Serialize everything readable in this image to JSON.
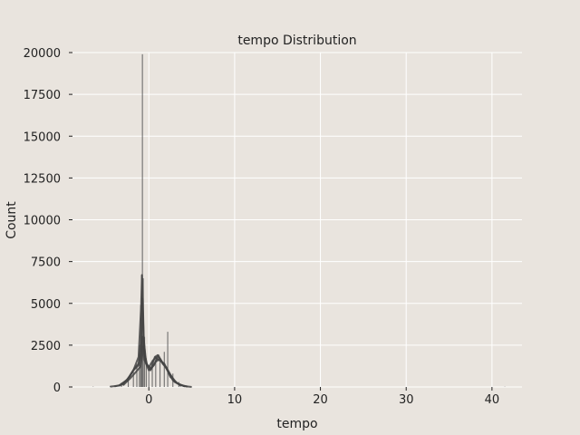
{
  "chart_data": {
    "type": "bar",
    "title": "tempo Distribution",
    "xlabel": "tempo",
    "ylabel": "Count",
    "xlim": [
      -8.9,
      43.5
    ],
    "ylim": [
      0,
      20000
    ],
    "xticks": [
      0,
      10,
      20,
      30,
      40
    ],
    "yticks": [
      0,
      2500,
      5000,
      7500,
      10000,
      12500,
      15000,
      17500,
      20000
    ],
    "grid": true,
    "legend": "none",
    "background": "#e9e4de",
    "grid_color": "#ffffff",
    "bar_color": "#555555",
    "kde_color": "#444444",
    "bins": [
      {
        "x": -6.5,
        "count": 20
      },
      {
        "x": -4.5,
        "count": 60
      },
      {
        "x": -3.2,
        "count": 250
      },
      {
        "x": -2.4,
        "count": 600
      },
      {
        "x": -1.8,
        "count": 900
      },
      {
        "x": -1.4,
        "count": 1300
      },
      {
        "x": -1.1,
        "count": 2500
      },
      {
        "x": -0.95,
        "count": 4900
      },
      {
        "x": -0.85,
        "count": 6700
      },
      {
        "x": -0.75,
        "count": 19900
      },
      {
        "x": -0.65,
        "count": 6500
      },
      {
        "x": -0.5,
        "count": 3000
      },
      {
        "x": -0.3,
        "count": 1700
      },
      {
        "x": 0.0,
        "count": 1200
      },
      {
        "x": 0.4,
        "count": 1600
      },
      {
        "x": 0.8,
        "count": 1900
      },
      {
        "x": 1.3,
        "count": 1500
      },
      {
        "x": 1.8,
        "count": 2100
      },
      {
        "x": 2.2,
        "count": 3300
      },
      {
        "x": 2.8,
        "count": 800
      },
      {
        "x": 3.5,
        "count": 300
      },
      {
        "x": 4.5,
        "count": 50
      },
      {
        "x": 41.5,
        "count": 15
      }
    ],
    "kde_series": [
      {
        "x": [
          -4.5,
          -3.5,
          -2.5,
          -1.8,
          -1.2,
          -0.9,
          -0.8,
          -0.7,
          -0.6,
          -0.4,
          0.0,
          0.5,
          1.0,
          1.5,
          2.0,
          3.0,
          4.0,
          5.0
        ],
        "y": [
          20,
          80,
          400,
          1000,
          1800,
          4800,
          6700,
          5200,
          3000,
          1500,
          1200,
          1600,
          1900,
          1500,
          1200,
          300,
          60,
          0
        ]
      },
      {
        "x": [
          -4.0,
          -3.0,
          -2.3,
          -1.7,
          -1.2,
          -0.9,
          -0.75,
          -0.6,
          -0.3,
          0.2,
          0.7,
          1.2,
          1.8,
          2.5,
          3.5,
          4.5
        ],
        "y": [
          30,
          150,
          600,
          1100,
          1400,
          2600,
          5300,
          2800,
          1400,
          1000,
          1800,
          1600,
          1400,
          600,
          150,
          20
        ]
      },
      {
        "x": [
          -3.5,
          -2.5,
          -1.8,
          -1.2,
          -0.9,
          -0.75,
          -0.6,
          -0.2,
          0.3,
          0.8,
          1.3,
          1.8,
          2.4,
          3.2,
          4.2
        ],
        "y": [
          60,
          450,
          1000,
          1300,
          2000,
          3000,
          2200,
          1300,
          1100,
          1500,
          1700,
          1300,
          800,
          250,
          30
        ]
      },
      {
        "x": [
          -3.0,
          -2.2,
          -1.5,
          -1.0,
          -0.8,
          -0.7,
          -0.5,
          0.0,
          0.6,
          1.1,
          1.6,
          2.1,
          2.8,
          3.8
        ],
        "y": [
          100,
          500,
          900,
          1200,
          1800,
          2400,
          1600,
          1000,
          1300,
          1900,
          1400,
          1100,
          400,
          50
        ]
      }
    ]
  }
}
